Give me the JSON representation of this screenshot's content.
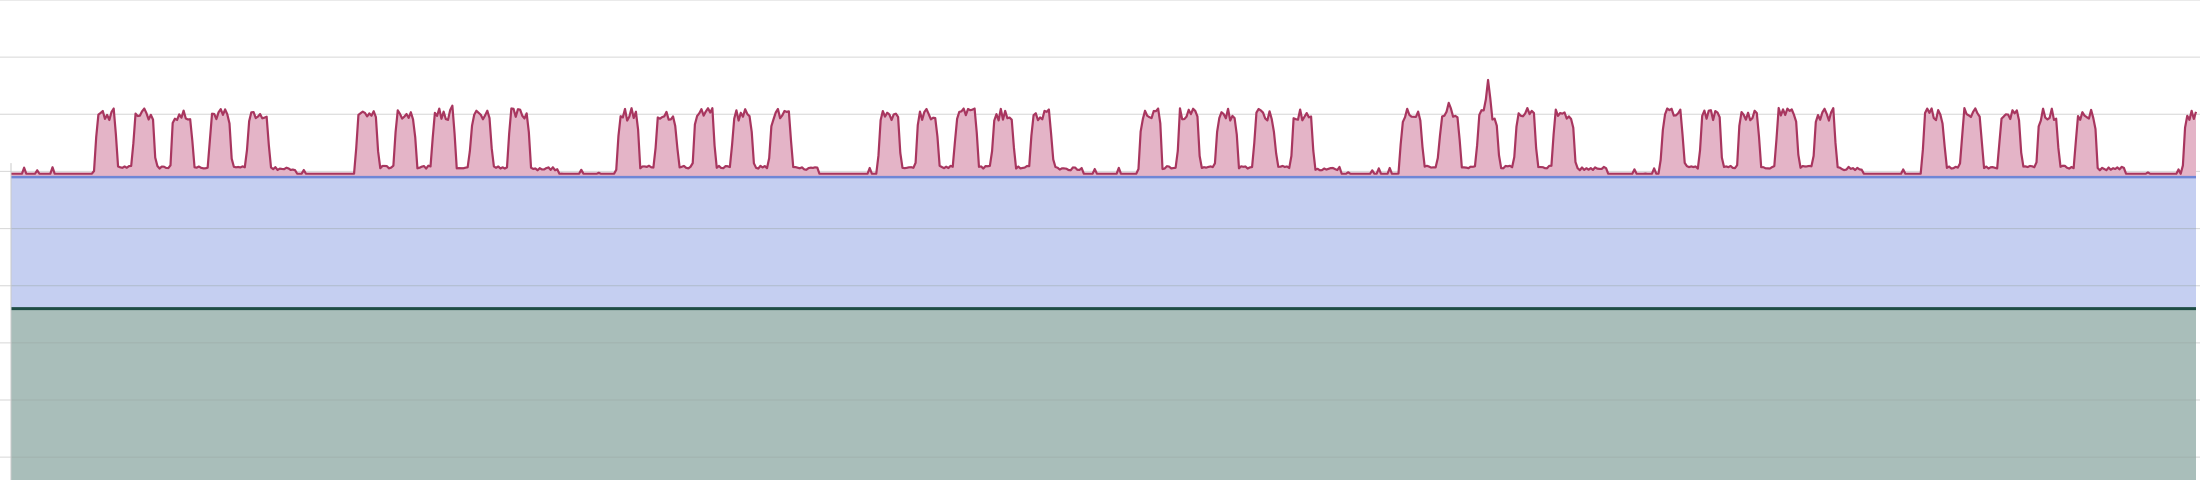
{
  "chart_data": {
    "type": "area",
    "title": "",
    "xlabel": "",
    "ylabel": "",
    "grid": true,
    "legend": "none",
    "ylim": [
      0,
      8.4
    ],
    "x_range": [
      0,
      1000
    ],
    "colors": {
      "background": "#ffffff",
      "grid": "#d6d6d6",
      "series_teal_fill": "#a9beba",
      "series_teal_line": "#1f4d45",
      "series_blue_fill": "#c5cff1",
      "series_blue_line": "#6f86d6",
      "series_pink_fill": "#e4b4c7",
      "series_pink_line": "#a8365f"
    },
    "series": [
      {
        "key": "teal",
        "level": 3.0
      },
      {
        "key": "blue",
        "level": 5.3
      },
      {
        "key": "pink",
        "base": 5.3,
        "pattern": {
          "day_period": 119.5,
          "day_offset": 38,
          "active_days": [
            0,
            1,
            2,
            3,
            4,
            5,
            6,
            7,
            8,
            9,
            10,
            11
          ],
          "bursts_per_day": 5,
          "burst_spacing": 17.4,
          "burst_width": 11,
          "burst_peak": 6.4,
          "burst_low": 5.5,
          "idle_level": 5.36
        },
        "spikes": [
          {
            "x": 676,
            "y": 7.0
          },
          {
            "x": 658,
            "y": 6.6
          },
          {
            "x": 441,
            "y": 6.5
          },
          {
            "x": 525,
            "y": 6.5
          },
          {
            "x": 202,
            "y": 6.55
          }
        ]
      }
    ]
  }
}
